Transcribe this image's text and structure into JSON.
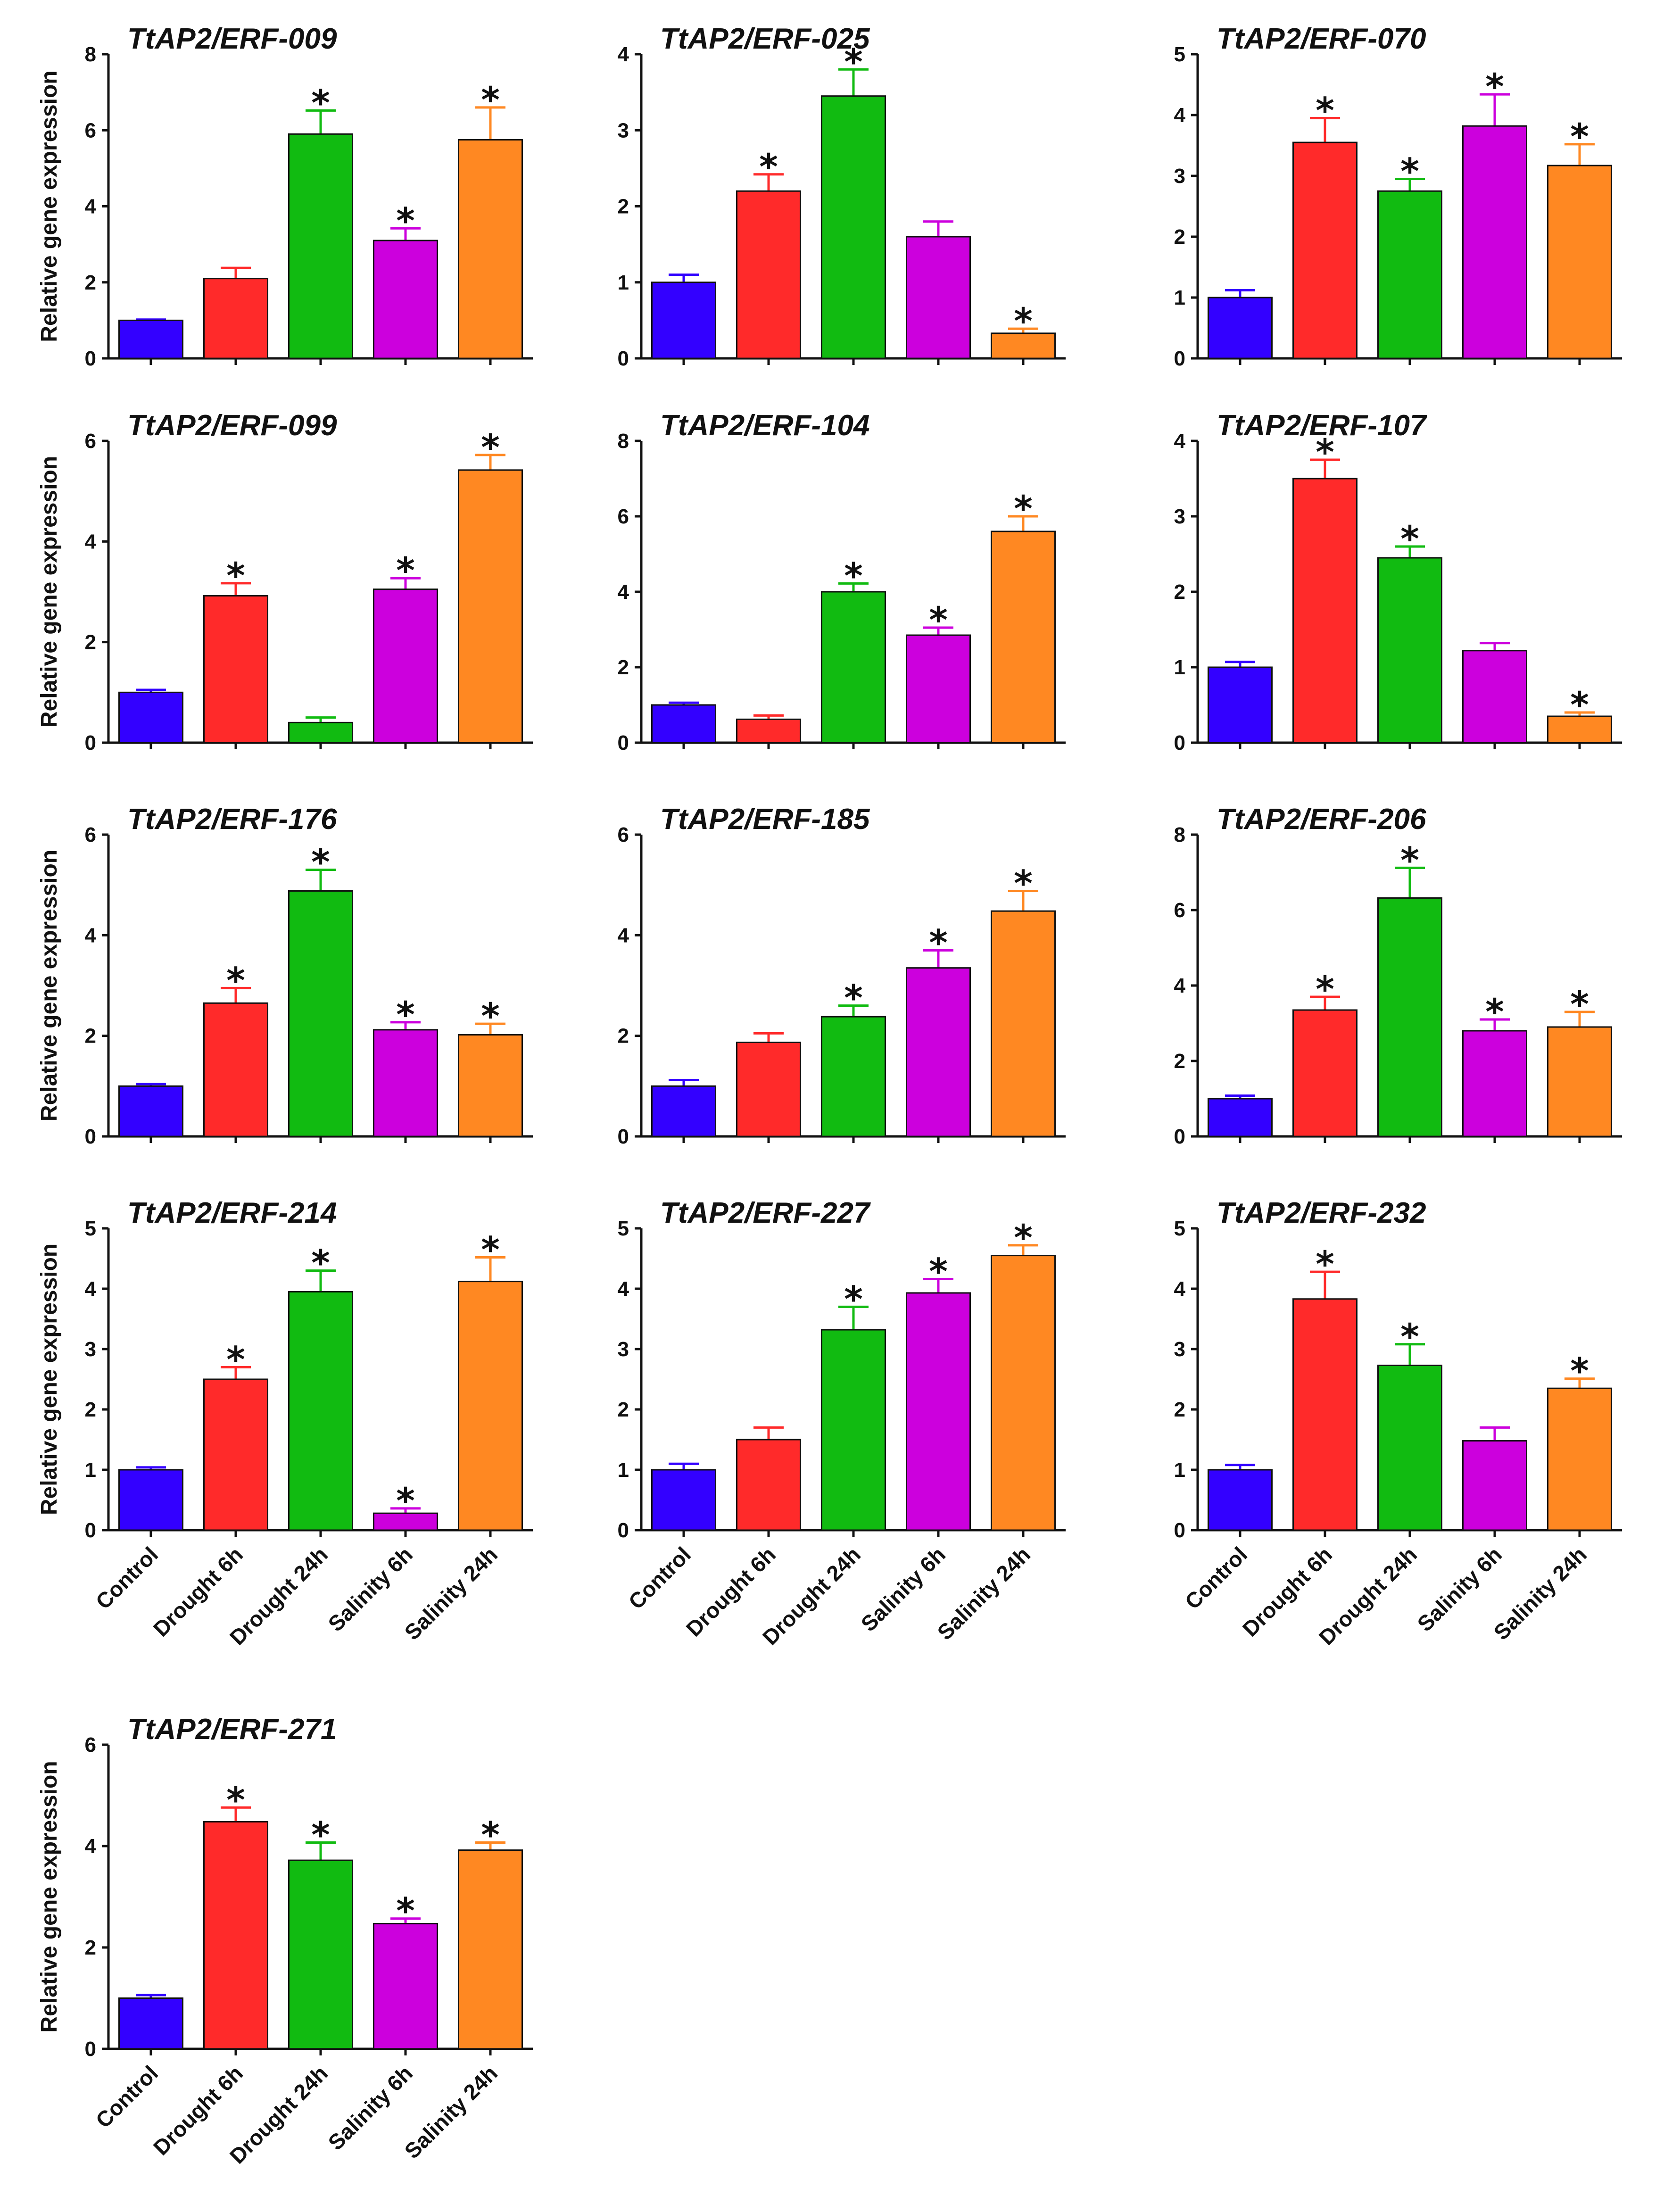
{
  "figure": {
    "categories": [
      "Control",
      "Drought 6h",
      "Drought 24h",
      "Salinity 6h",
      "Salinity 24h"
    ],
    "colors": [
      "#3300ff",
      "#ff2a2a",
      "#11bb11",
      "#cc00dd",
      "#ff8822"
    ],
    "ylabel": "Relative gene expression",
    "significance_symbol": "*"
  },
  "chart_data": [
    {
      "type": "bar",
      "title": "TtAP2/ERF-009",
      "ylim": [
        0,
        8
      ],
      "yticks": [
        0,
        2,
        4,
        6,
        8
      ],
      "values": [
        1.0,
        2.1,
        5.9,
        3.1,
        5.75
      ],
      "errors": [
        0.02,
        0.28,
        0.62,
        0.32,
        0.85
      ],
      "significant": [
        false,
        false,
        true,
        true,
        true
      ],
      "ylabel": "Relative gene expression",
      "xlabel": ""
    },
    {
      "type": "bar",
      "title": "TtAP2/ERF-025",
      "ylim": [
        0,
        4
      ],
      "yticks": [
        0,
        1,
        2,
        3,
        4
      ],
      "values": [
        1.0,
        2.2,
        3.45,
        1.6,
        0.33
      ],
      "errors": [
        0.1,
        0.22,
        0.35,
        0.2,
        0.06
      ],
      "significant": [
        false,
        true,
        true,
        false,
        true
      ],
      "ylabel": "",
      "xlabel": ""
    },
    {
      "type": "bar",
      "title": "TtAP2/ERF-070",
      "ylim": [
        0,
        5
      ],
      "yticks": [
        0,
        1,
        2,
        3,
        4,
        5
      ],
      "values": [
        1.0,
        3.55,
        2.75,
        3.82,
        3.17
      ],
      "errors": [
        0.12,
        0.4,
        0.2,
        0.52,
        0.35
      ],
      "significant": [
        false,
        true,
        true,
        true,
        true
      ],
      "ylabel": "",
      "xlabel": ""
    },
    {
      "type": "bar",
      "title": "TtAP2/ERF-099",
      "ylim": [
        0,
        6
      ],
      "yticks": [
        0,
        2,
        4,
        6
      ],
      "values": [
        1.0,
        2.92,
        0.4,
        3.05,
        5.42
      ],
      "errors": [
        0.05,
        0.25,
        0.1,
        0.22,
        0.3
      ],
      "significant": [
        false,
        true,
        false,
        true,
        true
      ],
      "ylabel": "Relative gene expression",
      "xlabel": ""
    },
    {
      "type": "bar",
      "title": "TtAP2/ERF-104",
      "ylim": [
        0,
        8
      ],
      "yticks": [
        0,
        2,
        4,
        6,
        8
      ],
      "values": [
        1.0,
        0.62,
        4.0,
        2.85,
        5.6
      ],
      "errors": [
        0.06,
        0.1,
        0.22,
        0.2,
        0.4
      ],
      "significant": [
        false,
        false,
        true,
        true,
        true
      ],
      "ylabel": "",
      "xlabel": ""
    },
    {
      "type": "bar",
      "title": "TtAP2/ERF-107",
      "ylim": [
        0,
        4
      ],
      "yticks": [
        0,
        1,
        2,
        3,
        4
      ],
      "values": [
        1.0,
        3.5,
        2.45,
        1.22,
        0.35
      ],
      "errors": [
        0.07,
        0.25,
        0.15,
        0.1,
        0.05
      ],
      "significant": [
        false,
        true,
        true,
        false,
        true
      ],
      "ylabel": "",
      "xlabel": ""
    },
    {
      "type": "bar",
      "title": "TtAP2/ERF-176",
      "ylim": [
        0,
        6
      ],
      "yticks": [
        0,
        2,
        4,
        6
      ],
      "values": [
        1.0,
        2.65,
        4.88,
        2.12,
        2.02
      ],
      "errors": [
        0.04,
        0.3,
        0.42,
        0.15,
        0.22
      ],
      "significant": [
        false,
        true,
        true,
        true,
        true
      ],
      "ylabel": "Relative gene expression",
      "xlabel": ""
    },
    {
      "type": "bar",
      "title": "TtAP2/ERF-185",
      "ylim": [
        0,
        6
      ],
      "yticks": [
        0,
        2,
        4,
        6
      ],
      "values": [
        1.0,
        1.87,
        2.38,
        3.35,
        4.48
      ],
      "errors": [
        0.12,
        0.18,
        0.22,
        0.35,
        0.4
      ],
      "significant": [
        false,
        false,
        true,
        true,
        true
      ],
      "ylabel": "",
      "xlabel": ""
    },
    {
      "type": "bar",
      "title": "TtAP2/ERF-206",
      "ylim": [
        0,
        8
      ],
      "yticks": [
        0,
        2,
        4,
        6,
        8
      ],
      "values": [
        1.0,
        3.35,
        6.32,
        2.8,
        2.9
      ],
      "errors": [
        0.08,
        0.35,
        0.8,
        0.3,
        0.4
      ],
      "significant": [
        false,
        true,
        true,
        true,
        true
      ],
      "ylabel": "",
      "xlabel": ""
    },
    {
      "type": "bar",
      "title": "TtAP2/ERF-214",
      "ylim": [
        0,
        5
      ],
      "yticks": [
        0,
        1,
        2,
        3,
        4,
        5
      ],
      "values": [
        1.0,
        2.5,
        3.95,
        0.28,
        4.12
      ],
      "errors": [
        0.04,
        0.2,
        0.35,
        0.08,
        0.4
      ],
      "significant": [
        false,
        true,
        true,
        true,
        true
      ],
      "ylabel": "Relative gene expression",
      "xlabel": ""
    },
    {
      "type": "bar",
      "title": "TtAP2/ERF-227",
      "ylim": [
        0,
        5
      ],
      "yticks": [
        0,
        1,
        2,
        3,
        4,
        5
      ],
      "values": [
        1.0,
        1.5,
        3.32,
        3.93,
        4.55
      ],
      "errors": [
        0.1,
        0.2,
        0.38,
        0.23,
        0.17
      ],
      "significant": [
        false,
        false,
        true,
        true,
        true
      ],
      "ylabel": "",
      "xlabel": ""
    },
    {
      "type": "bar",
      "title": "TtAP2/ERF-232",
      "ylim": [
        0,
        5
      ],
      "yticks": [
        0,
        1,
        2,
        3,
        4,
        5
      ],
      "values": [
        1.0,
        3.83,
        2.73,
        1.48,
        2.35
      ],
      "errors": [
        0.08,
        0.45,
        0.35,
        0.22,
        0.16
      ],
      "significant": [
        false,
        true,
        true,
        false,
        true
      ],
      "ylabel": "",
      "xlabel": ""
    },
    {
      "type": "bar",
      "title": "TtAP2/ERF-271",
      "ylim": [
        0,
        6
      ],
      "yticks": [
        0,
        2,
        4,
        6
      ],
      "values": [
        1.0,
        4.48,
        3.72,
        2.47,
        3.92
      ],
      "errors": [
        0.06,
        0.28,
        0.35,
        0.1,
        0.15
      ],
      "significant": [
        false,
        true,
        true,
        true,
        true
      ],
      "ylabel": "Relative gene expression",
      "xlabel": ""
    }
  ]
}
